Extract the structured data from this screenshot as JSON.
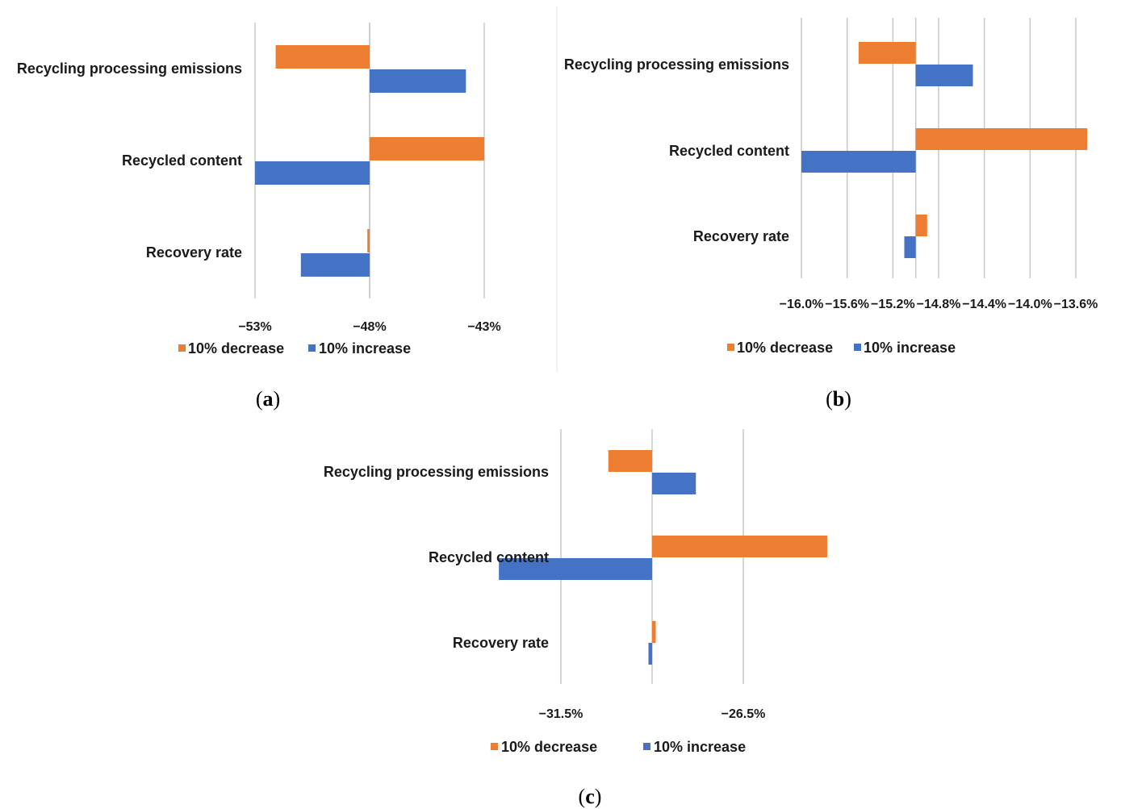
{
  "colors": {
    "decrease": "#ed7d31",
    "increase": "#4472c4",
    "grid": "#c8c8c8"
  },
  "chart_data": [
    {
      "panel": "a",
      "panel_label": {
        "open": "(",
        "letter": "a",
        "close": ")"
      },
      "type": "bar",
      "orientation": "horizontal",
      "categories": [
        "Recycling processing emissions",
        "Recycled content",
        "Recovery rate"
      ],
      "base_value": -48.0,
      "xlim": [
        -53,
        -43
      ],
      "tick_values": [
        -53,
        -48,
        -43
      ],
      "tick_labels": [
        "−53%",
        "−48%",
        "−43%"
      ],
      "grid": true,
      "legend_position": "bottom",
      "series": [
        {
          "name": "10% decrease",
          "color_key": "decrease",
          "values": [
            -52.1,
            -43.0,
            -48.1
          ]
        },
        {
          "name": "10% increase",
          "color_key": "increase",
          "values": [
            -43.8,
            -53.0,
            -51.0
          ]
        }
      ]
    },
    {
      "panel": "b",
      "panel_label": {
        "open": "(",
        "letter": "b",
        "close": ")"
      },
      "type": "bar",
      "orientation": "horizontal",
      "categories": [
        "Recycling processing emissions",
        "Recycled content",
        "Recovery rate"
      ],
      "base_value": -15.0,
      "xlim": [
        -16.0,
        -13.6
      ],
      "tick_values": [
        -16.0,
        -15.6,
        -15.2,
        -14.8,
        -14.4,
        -14.0,
        -13.6
      ],
      "tick_labels": [
        "−16.0%",
        "−15.6%",
        "−15.2%",
        "−14.8%",
        "−14.4%",
        "−14.0%",
        "−13.6%"
      ],
      "grid": true,
      "legend_position": "bottom",
      "series": [
        {
          "name": "10% decrease",
          "color_key": "decrease",
          "values": [
            -15.5,
            -13.5,
            -14.9
          ]
        },
        {
          "name": "10% increase",
          "color_key": "increase",
          "values": [
            -14.5,
            -16.0,
            -15.1
          ]
        }
      ]
    },
    {
      "panel": "c",
      "panel_label": {
        "open": "(",
        "letter": "c",
        "close": ")"
      },
      "type": "bar",
      "orientation": "horizontal",
      "categories": [
        "Recycling processing emissions",
        "Recycled content",
        "Recovery rate"
      ],
      "base_value": -29.0,
      "xlim": [
        -34.0,
        -24.0
      ],
      "tick_values": [
        -31.5,
        -26.5
      ],
      "tick_labels": [
        "−31.5%",
        "−26.5%"
      ],
      "grid": true,
      "legend_position": "bottom",
      "series": [
        {
          "name": "10% decrease",
          "color_key": "decrease",
          "values": [
            -30.2,
            -24.2,
            -28.9
          ]
        },
        {
          "name": "10% increase",
          "color_key": "increase",
          "values": [
            -27.8,
            -33.2,
            -29.1
          ]
        }
      ]
    }
  ]
}
